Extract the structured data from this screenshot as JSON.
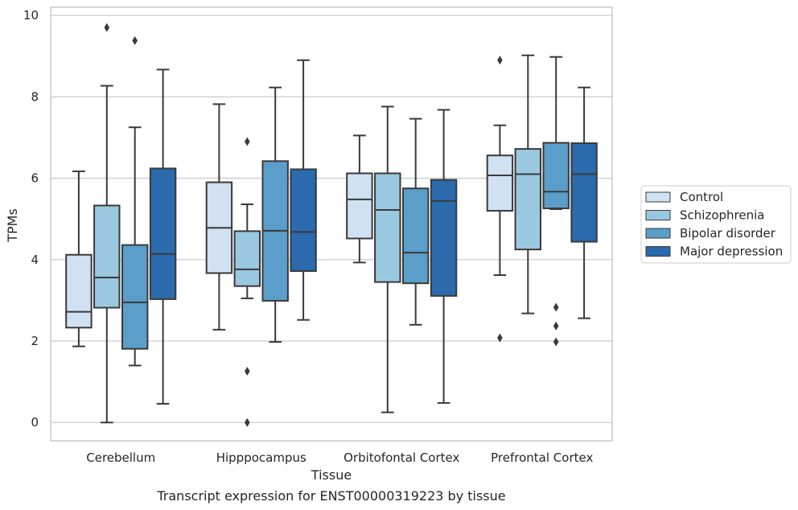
{
  "chart_data": {
    "type": "box",
    "title": "",
    "caption": "Transcript expression for ENST00000319223 by tissue",
    "xlabel": "Tissue",
    "ylabel": "TPMs",
    "ylim": [
      -0.45,
      10.2
    ],
    "yticks": [
      0,
      2,
      4,
      6,
      8,
      10
    ],
    "grid": "horizontal",
    "legend_position": "right",
    "categories": [
      "Cerebellum",
      "Hipppocampus",
      "Orbitofontal Cortex",
      "Prefrontal Cortex"
    ],
    "series": [
      {
        "name": "Control",
        "color": "#d0e1f2",
        "boxes": [
          {
            "whislo": 1.87,
            "q1": 2.33,
            "med": 2.72,
            "q3": 4.12,
            "whishi": 6.17,
            "fliers": []
          },
          {
            "whislo": 2.28,
            "q1": 3.67,
            "med": 4.78,
            "q3": 5.9,
            "whishi": 7.82,
            "fliers": []
          },
          {
            "whislo": 3.93,
            "q1": 4.52,
            "med": 5.48,
            "q3": 6.12,
            "whishi": 7.05,
            "fliers": []
          },
          {
            "whislo": 3.62,
            "q1": 5.2,
            "med": 6.07,
            "q3": 6.56,
            "whishi": 7.3,
            "fliers": [
              8.9,
              2.08
            ]
          }
        ]
      },
      {
        "name": "Schizophrenia",
        "color": "#9ac8e0",
        "boxes": [
          {
            "whislo": 0.0,
            "q1": 2.82,
            "med": 3.56,
            "q3": 5.33,
            "whishi": 8.27,
            "fliers": [
              9.7
            ]
          },
          {
            "whislo": 3.05,
            "q1": 3.35,
            "med": 3.76,
            "q3": 4.7,
            "whishi": 5.36,
            "fliers": [
              6.9,
              1.26,
              0.0
            ]
          },
          {
            "whislo": 0.25,
            "q1": 3.45,
            "med": 5.22,
            "q3": 6.12,
            "whishi": 7.76,
            "fliers": []
          },
          {
            "whislo": 2.68,
            "q1": 4.25,
            "med": 6.1,
            "q3": 6.72,
            "whishi": 9.02,
            "fliers": []
          }
        ]
      },
      {
        "name": "Bipolar disorder",
        "color": "#5a9ec9",
        "boxes": [
          {
            "whislo": 1.4,
            "q1": 1.81,
            "med": 2.95,
            "q3": 4.36,
            "whishi": 7.25,
            "fliers": [
              9.38
            ]
          },
          {
            "whislo": 1.98,
            "q1": 2.99,
            "med": 4.71,
            "q3": 6.42,
            "whishi": 8.23,
            "fliers": []
          },
          {
            "whislo": 2.4,
            "q1": 3.42,
            "med": 4.17,
            "q3": 5.75,
            "whishi": 7.46,
            "fliers": []
          },
          {
            "whislo": 5.24,
            "q1": 5.26,
            "med": 5.67,
            "q3": 6.87,
            "whishi": 8.98,
            "fliers": [
              2.83,
              2.37,
              1.98
            ]
          }
        ]
      },
      {
        "name": "Major depression",
        "color": "#2a6aad",
        "boxes": [
          {
            "whislo": 0.46,
            "q1": 3.03,
            "med": 4.14,
            "q3": 6.24,
            "whishi": 8.67,
            "fliers": []
          },
          {
            "whislo": 2.52,
            "q1": 3.72,
            "med": 4.68,
            "q3": 6.22,
            "whishi": 8.9,
            "fliers": []
          },
          {
            "whislo": 0.48,
            "q1": 3.11,
            "med": 5.44,
            "q3": 5.96,
            "whishi": 7.68,
            "fliers": []
          },
          {
            "whislo": 2.56,
            "q1": 4.44,
            "med": 6.1,
            "q3": 6.86,
            "whishi": 8.23,
            "fliers": []
          }
        ]
      }
    ]
  }
}
